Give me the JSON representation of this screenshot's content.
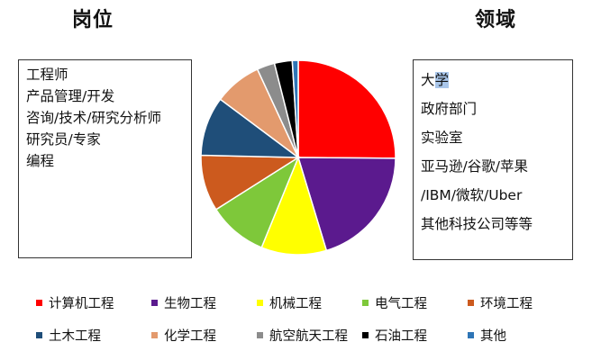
{
  "headings": {
    "left": "岗位",
    "right": "领域"
  },
  "positions": [
    "工程师",
    "产品管理/开发",
    "咨询/技术/研究分析师",
    "研究员/专家",
    "编程"
  ],
  "fields": [
    {
      "pre": "大",
      "hl": "学",
      "post": ""
    },
    {
      "pre": "政府部门",
      "hl": "",
      "post": ""
    },
    {
      "pre": "实验室",
      "hl": "",
      "post": ""
    },
    {
      "pre": "亚马逊/谷歌/苹果",
      "hl": "",
      "post": ""
    },
    {
      "pre": "/IBM/微软/Uber",
      "hl": "",
      "post": ""
    },
    {
      "pre": "其他科技公司等等",
      "hl": "",
      "post": ""
    }
  ],
  "chart_data": {
    "type": "pie",
    "title": "",
    "slices": [
      {
        "label": "计算机工程",
        "value": 25.5,
        "color": "#ff0000"
      },
      {
        "label": "生物工程",
        "value": 20.5,
        "color": "#5b1a8e"
      },
      {
        "label": "机械工程",
        "value": 11,
        "color": "#ffff00"
      },
      {
        "label": "电气工程",
        "value": 10,
        "color": "#7ec83a"
      },
      {
        "label": "环境工程",
        "value": 9.5,
        "color": "#cc5a1e"
      },
      {
        "label": "土木工程",
        "value": 10,
        "color": "#1f4e79"
      },
      {
        "label": "化学工程",
        "value": 8,
        "color": "#e39a6d"
      },
      {
        "label": "航空航天工程",
        "value": 3,
        "color": "#8c8c8c"
      },
      {
        "label": "石油工程",
        "value": 3,
        "color": "#000000"
      },
      {
        "label": "其他",
        "value": 1,
        "color": "#2e75b6"
      }
    ],
    "legend_position": "bottom"
  }
}
